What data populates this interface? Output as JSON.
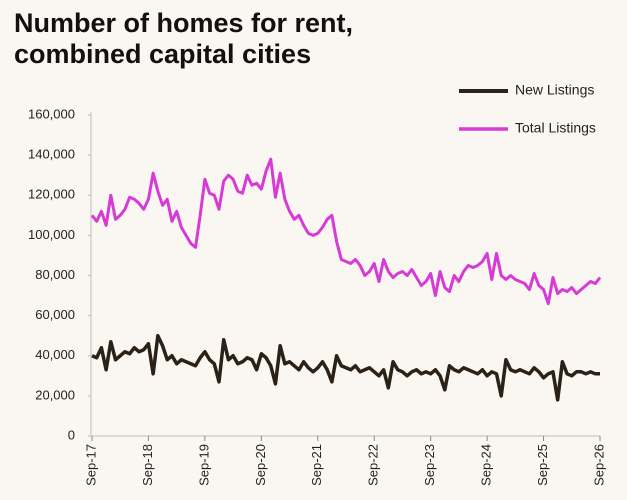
{
  "chart_data": {
    "type": "line",
    "title": "Number of homes for rent, combined capital cities",
    "categories": [
      "Sep-17",
      null,
      null,
      null,
      null,
      null,
      null,
      null,
      null,
      null,
      null,
      null,
      "Sep-18",
      null,
      null,
      null,
      null,
      null,
      null,
      null,
      null,
      null,
      null,
      null,
      "Sep-19",
      null,
      null,
      null,
      null,
      null,
      null,
      null,
      null,
      null,
      null,
      null,
      "Sep-20",
      null,
      null,
      null,
      null,
      null,
      null,
      null,
      null,
      null,
      null,
      null,
      "Sep-21",
      null,
      null,
      null,
      null,
      null,
      null,
      null,
      null,
      null,
      null,
      null,
      "Sep-22",
      null,
      null,
      null,
      null,
      null,
      null,
      null,
      null,
      null,
      null,
      null,
      "Sep-23",
      null,
      null,
      null,
      null,
      null,
      null,
      null,
      null,
      null,
      null,
      null,
      "Sep-24",
      null,
      null,
      null,
      null,
      null,
      null,
      null,
      null,
      null,
      null,
      null,
      "Sep-25",
      null,
      null,
      null,
      null,
      null,
      null,
      null,
      null,
      null,
      null,
      null,
      "Sep-26"
    ],
    "series": [
      {
        "name": "New Listings",
        "color": "#2b2116",
        "values": [
          40000,
          39000,
          44000,
          33000,
          47000,
          38000,
          40000,
          42000,
          41000,
          44000,
          42000,
          43000,
          46000,
          31000,
          50000,
          45000,
          38000,
          40000,
          36000,
          38000,
          37000,
          36000,
          35000,
          39000,
          42000,
          38000,
          36000,
          27000,
          48000,
          38000,
          40000,
          36000,
          37000,
          39000,
          38000,
          33000,
          41000,
          39000,
          35000,
          26000,
          45000,
          36000,
          37000,
          35000,
          33000,
          37000,
          34000,
          32000,
          34000,
          37000,
          33000,
          27000,
          40000,
          35000,
          34000,
          33000,
          35000,
          32000,
          33000,
          34000,
          32000,
          30000,
          33000,
          24000,
          37000,
          33000,
          32000,
          30000,
          32000,
          33000,
          31000,
          32000,
          31000,
          33000,
          30000,
          23000,
          35000,
          33000,
          32000,
          34000,
          33000,
          32000,
          31000,
          33000,
          30000,
          32000,
          31000,
          20000,
          38000,
          33000,
          32000,
          33000,
          32000,
          31000,
          34000,
          32000,
          29000,
          31000,
          32000,
          18000,
          37000,
          31000,
          30000,
          32000,
          32000,
          31000,
          32000,
          31000,
          31000
        ]
      },
      {
        "name": "Total Listings",
        "color": "#d63bd6",
        "values": [
          110000,
          107000,
          112000,
          105000,
          120000,
          108000,
          110000,
          113000,
          119000,
          118000,
          116000,
          113000,
          118000,
          131000,
          122000,
          115000,
          118000,
          107000,
          112000,
          104000,
          100000,
          96000,
          94000,
          110000,
          128000,
          121000,
          120000,
          113000,
          127000,
          130000,
          128000,
          122000,
          121000,
          130000,
          125000,
          126000,
          123000,
          132000,
          138000,
          119000,
          131000,
          118000,
          112000,
          108000,
          110000,
          105000,
          101000,
          100000,
          101000,
          104000,
          108000,
          110000,
          97000,
          88000,
          87000,
          86000,
          88000,
          85000,
          80000,
          82000,
          86000,
          77000,
          88000,
          82000,
          79000,
          81000,
          82000,
          80000,
          83000,
          79000,
          75000,
          77000,
          81000,
          70000,
          82000,
          74000,
          72000,
          80000,
          77000,
          82000,
          85000,
          84000,
          85000,
          87000,
          91000,
          78000,
          91000,
          80000,
          78000,
          80000,
          78000,
          77000,
          76000,
          73000,
          81000,
          75000,
          73000,
          66000,
          79000,
          71000,
          73000,
          72000,
          74000,
          71000,
          73000,
          75000,
          77000,
          76000,
          79000
        ]
      }
    ],
    "ylim": [
      0,
      160000
    ],
    "yticks": [
      0,
      {
        "value": 20000,
        "label": "20,000"
      },
      {
        "value": 40000,
        "label": "40,000"
      },
      {
        "value": 60000,
        "label": "60,000"
      },
      {
        "value": 80000,
        "label": "80,000"
      },
      {
        "value": 100000,
        "label": "100,000"
      },
      {
        "value": 120000,
        "label": "120,000"
      },
      {
        "value": 140000,
        "label": "140,000"
      },
      {
        "value": 160000,
        "label": "160,000"
      }
    ],
    "legend": "top-right"
  }
}
